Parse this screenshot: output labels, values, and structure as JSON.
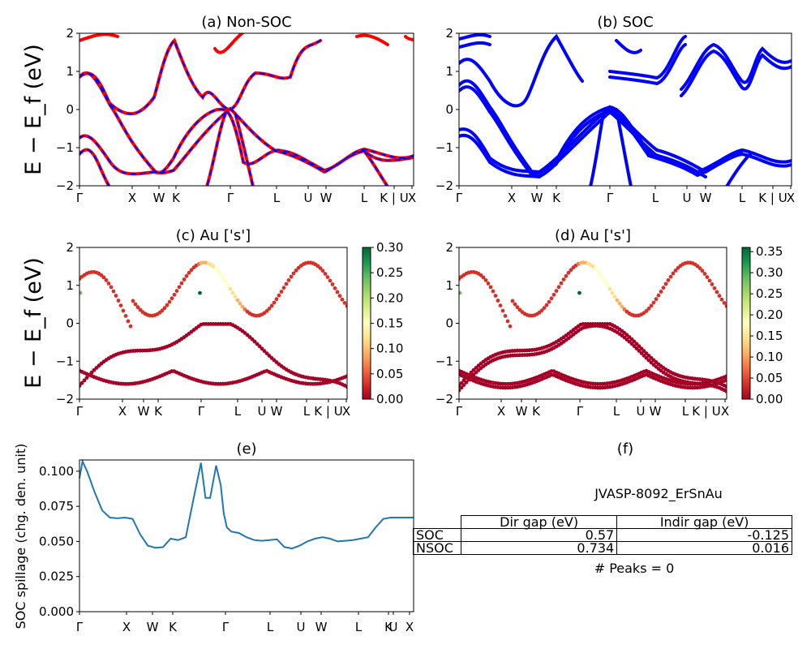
{
  "figure": {
    "ylabel_bands": "E − E_f (eV)",
    "band_y_ticks": [
      "2",
      "1",
      "0",
      "−1",
      "−2"
    ],
    "band_x_ticks": [
      "Γ",
      "X",
      "W",
      "K",
      "Γ",
      "L",
      "U",
      "W",
      "L",
      "K | U",
      "X"
    ],
    "spill_x_ticks": [
      "Γ",
      "X",
      "W",
      "K",
      "Γ",
      "L",
      "U",
      "W",
      "L",
      "K",
      "U",
      "X"
    ],
    "colorbar_c_ticks": [
      "0.30",
      "0.25",
      "0.20",
      "0.15",
      "0.10",
      "0.05",
      "0.00"
    ],
    "colorbar_d_ticks": [
      "0.35",
      "0.30",
      "0.25",
      "0.20",
      "0.15",
      "0.10",
      "0.05",
      "0.00"
    ],
    "spill_y_ticks": [
      "0.100",
      "0.075",
      "0.050",
      "0.025",
      "0.000"
    ]
  },
  "chart_data": [
    {
      "id": "a",
      "type": "line",
      "title": "(a) Non-SOC",
      "ylabel": "E − E_f (eV)",
      "ylim": [
        -2,
        2
      ],
      "colors": [
        "#ff0000",
        "#0000ff"
      ],
      "style": "red solid with blue dashed overlay",
      "x_labels": [
        "Γ",
        "X",
        "W",
        "K",
        "Γ",
        "L",
        "U",
        "W",
        "L",
        "K | U",
        "X"
      ]
    },
    {
      "id": "b",
      "type": "line",
      "title": "(b) SOC",
      "ylim": [
        -2,
        2
      ],
      "colors": [
        "#0000ff"
      ],
      "x_labels": [
        "Γ",
        "X",
        "W",
        "K",
        "Γ",
        "L",
        "U",
        "W",
        "L",
        "K | U",
        "X"
      ]
    },
    {
      "id": "c",
      "type": "scatter",
      "title": "(c)  Au ['s']",
      "ylabel": "E − E_f (eV)",
      "ylim": [
        -2,
        2
      ],
      "colormap": "RdYlGn",
      "clim": [
        0.0,
        0.3
      ],
      "x_labels": [
        "Γ",
        "X",
        "W",
        "K",
        "Γ",
        "L",
        "U",
        "W",
        "L",
        "K | U",
        "X"
      ]
    },
    {
      "id": "d",
      "type": "scatter",
      "title": "(d) Au ['s']",
      "ylim": [
        -2,
        2
      ],
      "colormap": "RdYlGn",
      "clim": [
        0.0,
        0.36
      ],
      "x_labels": [
        "Γ",
        "X",
        "W",
        "K",
        "Γ",
        "L",
        "U",
        "W",
        "L",
        "K | U",
        "X"
      ]
    },
    {
      "id": "e",
      "type": "line",
      "title": "(e)",
      "ylabel": "SOC spillage (chg. den. unit)",
      "ylim": [
        0.0,
        0.108
      ],
      "color": "#1f77b4",
      "x": [
        0,
        0.2,
        0.5,
        1,
        1.5,
        2,
        2.5,
        3,
        3.5,
        4,
        4.5,
        5,
        5.5,
        6,
        6.5,
        7,
        7.5,
        8,
        8.3,
        8.6,
        9,
        9.3,
        9.5,
        9.7,
        10,
        10.5,
        11,
        11.5,
        12,
        12.5,
        13,
        13.5,
        14,
        14.5,
        15,
        15.5,
        16,
        16.5,
        17,
        17.5,
        18,
        18.5,
        19,
        19.5,
        20,
        20.5,
        21,
        21.5,
        22
      ],
      "y": [
        0.095,
        0.107,
        0.1,
        0.085,
        0.072,
        0.067,
        0.0665,
        0.067,
        0.066,
        0.055,
        0.047,
        0.0455,
        0.046,
        0.052,
        0.051,
        0.053,
        0.08,
        0.106,
        0.081,
        0.081,
        0.104,
        0.09,
        0.07,
        0.06,
        0.057,
        0.056,
        0.053,
        0.051,
        0.0505,
        0.051,
        0.0515,
        0.046,
        0.045,
        0.047,
        0.05,
        0.052,
        0.053,
        0.052,
        0.05,
        0.0505,
        0.051,
        0.052,
        0.053,
        0.06,
        0.066,
        0.067,
        0.067,
        0.067,
        0.067
      ],
      "x_labels": [
        "Γ",
        "X",
        "W",
        "K",
        "Γ",
        "L",
        "U",
        "W",
        "L",
        "K",
        "U",
        "X"
      ]
    },
    {
      "id": "f",
      "type": "table",
      "title": "(f)",
      "subtitle": "JVASP-8092_ErSnAu",
      "columns": [
        "Dir gap (eV)",
        "Indir gap (eV)"
      ],
      "rows": [
        {
          "label": "SOC",
          "values": [
            "0.57",
            "-0.125"
          ]
        },
        {
          "label": "NSOC",
          "values": [
            "0.734",
            "0.016"
          ]
        }
      ],
      "note": "# Peaks = 0"
    }
  ]
}
